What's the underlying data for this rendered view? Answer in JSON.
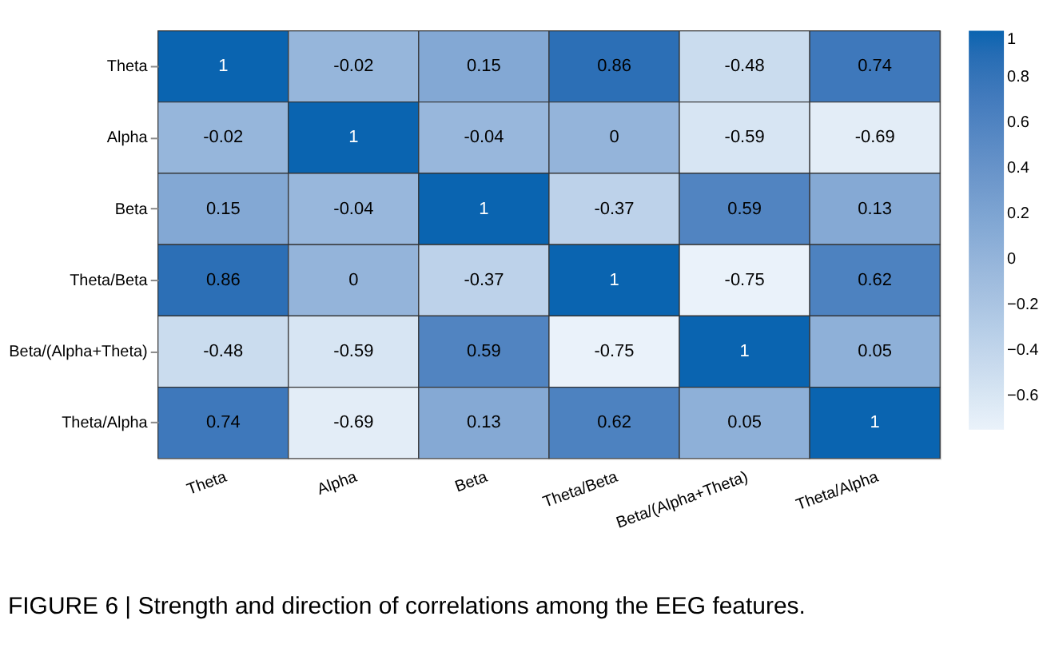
{
  "chart_data": {
    "type": "heatmap",
    "categories": [
      "Theta",
      "Alpha",
      "Beta",
      "Theta/Beta",
      "Beta/(Alpha+Theta)",
      "Theta/Alpha"
    ],
    "y_categories": [
      "Theta",
      "Alpha",
      "Beta",
      "Theta/Beta",
      "Beta/(Alpha+Theta)",
      "Theta/Alpha"
    ],
    "cells": [
      [
        1,
        -0.02,
        0.15,
        0.86,
        -0.48,
        0.74
      ],
      [
        -0.02,
        1,
        -0.04,
        0,
        -0.59,
        -0.69
      ],
      [
        0.15,
        -0.04,
        1,
        -0.37,
        0.59,
        0.13
      ],
      [
        0.86,
        0,
        -0.37,
        1,
        -0.75,
        0.62
      ],
      [
        -0.48,
        -0.59,
        0.59,
        -0.75,
        1,
        0.05
      ],
      [
        0.74,
        -0.69,
        0.13,
        0.62,
        0.05,
        1
      ]
    ],
    "clim": [
      -0.75,
      1
    ],
    "cticks": [
      -0.6,
      -0.4,
      -0.2,
      0,
      0.2,
      0.4,
      0.6,
      0.8,
      1
    ],
    "colors": [
      "#eaf2fa",
      "#0a64b0"
    ],
    "data_labels": true,
    "annotations": [
      "FIGURE 6 | Strength and direction of correlations among the EEG features."
    ]
  }
}
